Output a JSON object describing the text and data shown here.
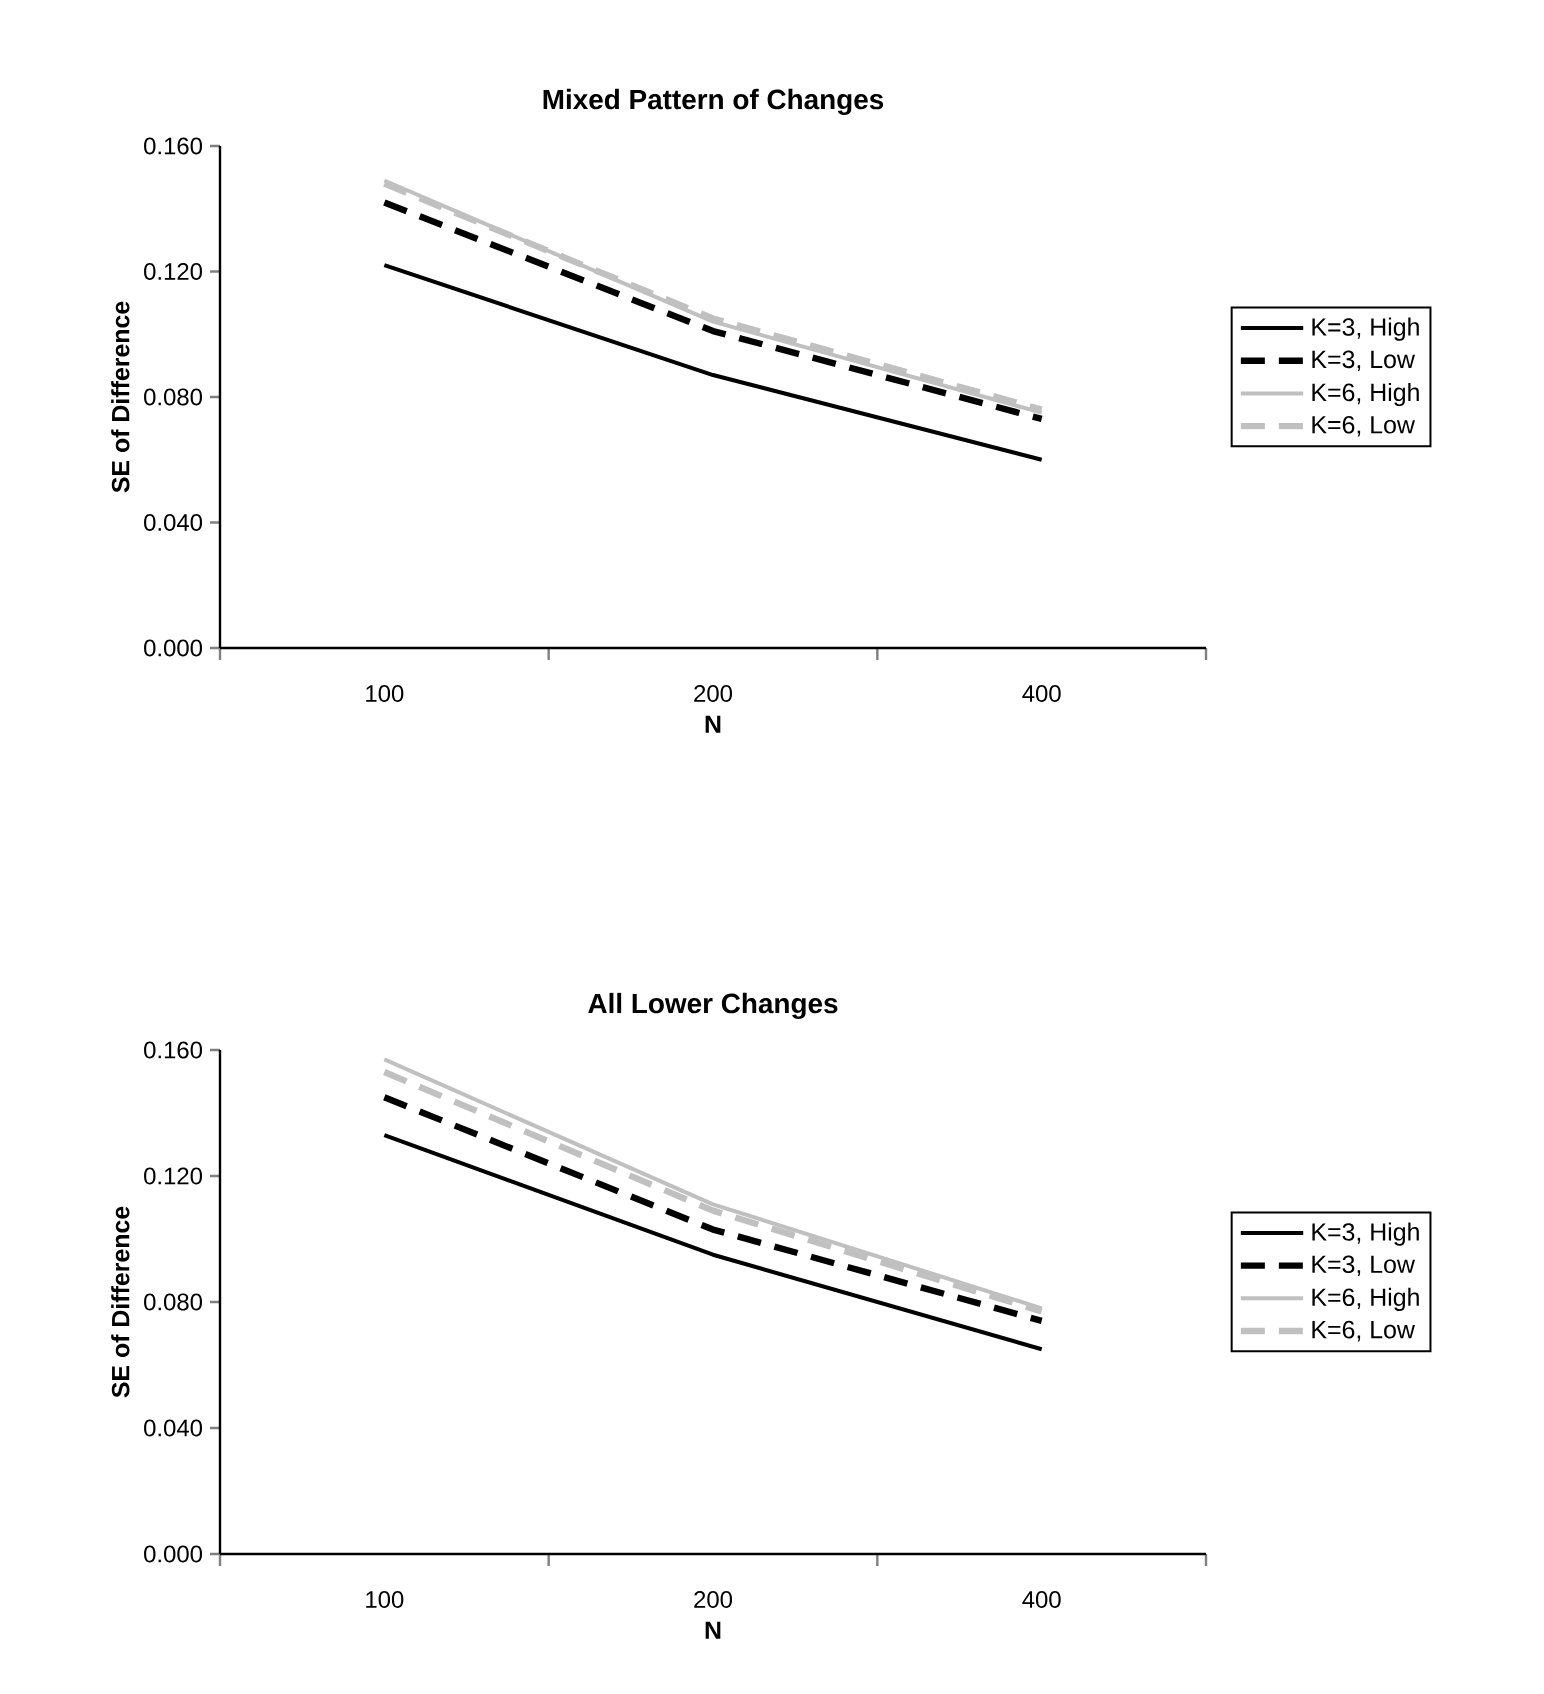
{
  "chart_data": [
    {
      "type": "line",
      "title": "Mixed Pattern of Changes",
      "xlabel": "N",
      "ylabel": "SE of Difference",
      "categories": [
        "100",
        "200",
        "400"
      ],
      "ylim": [
        0,
        0.16
      ],
      "yticks": [
        {
          "value": 0,
          "label": "0.000"
        },
        {
          "value": 0.04,
          "label": "0.040"
        },
        {
          "value": 0.08,
          "label": "0.080"
        },
        {
          "value": 0.12,
          "label": "0.120"
        },
        {
          "value": 0.16,
          "label": "0.160"
        }
      ],
      "legend": "right",
      "series": [
        {
          "name": "K=3, High",
          "color": "#000000",
          "line_style": "solid",
          "values": [
            0.122,
            0.087,
            0.06
          ]
        },
        {
          "name": "K=3, Low",
          "color": "#000000",
          "line_style": "dashed",
          "values": [
            0.142,
            0.101,
            0.073
          ]
        },
        {
          "name": "K=6, High",
          "color": "#c0c0c0",
          "line_style": "solid",
          "values": [
            0.149,
            0.104,
            0.075
          ]
        },
        {
          "name": "K=6, Low",
          "color": "#c0c0c0",
          "line_style": "dashed",
          "values": [
            0.148,
            0.105,
            0.076
          ]
        }
      ]
    },
    {
      "type": "line",
      "title": "All Lower Changes",
      "xlabel": "N",
      "ylabel": "SE of Difference",
      "categories": [
        "100",
        "200",
        "400"
      ],
      "ylim": [
        0,
        0.16
      ],
      "yticks": [
        {
          "value": 0,
          "label": "0.000"
        },
        {
          "value": 0.04,
          "label": "0.040"
        },
        {
          "value": 0.08,
          "label": "0.080"
        },
        {
          "value": 0.12,
          "label": "0.120"
        },
        {
          "value": 0.16,
          "label": "0.160"
        }
      ],
      "legend": "right",
      "series": [
        {
          "name": "K=3, High",
          "color": "#000000",
          "line_style": "solid",
          "values": [
            0.133,
            0.095,
            0.065
          ]
        },
        {
          "name": "K=3, Low",
          "color": "#000000",
          "line_style": "dashed",
          "values": [
            0.145,
            0.103,
            0.074
          ]
        },
        {
          "name": "K=6, High",
          "color": "#c0c0c0",
          "line_style": "solid",
          "values": [
            0.157,
            0.111,
            0.078
          ]
        },
        {
          "name": "K=6, Low",
          "color": "#c0c0c0",
          "line_style": "dashed",
          "values": [
            0.153,
            0.109,
            0.077
          ]
        }
      ]
    }
  ]
}
